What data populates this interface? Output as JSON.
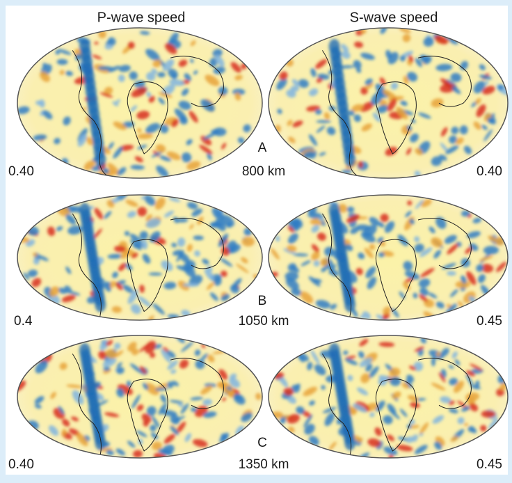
{
  "header": {
    "columns": [
      "P-wave speed",
      "S-wave speed"
    ]
  },
  "rows": [
    {
      "letter": "A",
      "depth": "800 km",
      "p_scale": "0.40",
      "s_scale": "0.40"
    },
    {
      "letter": "B",
      "depth": "1050 km",
      "p_scale": "0.4",
      "s_scale": "0.45"
    },
    {
      "letter": "C",
      "depth": "1350 km",
      "p_scale": "0.40",
      "s_scale": "0.45"
    }
  ]
}
